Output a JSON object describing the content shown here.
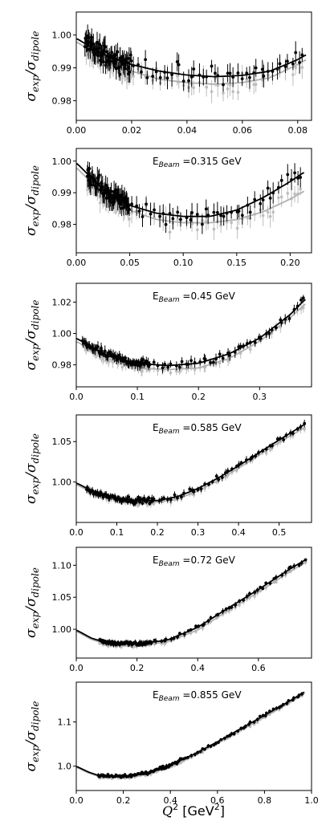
{
  "chart_data": [
    {
      "type": "scatter",
      "ylabel": "σexp/σdipole",
      "annotation": "",
      "xlim": [
        0.0,
        0.085
      ],
      "ylim": [
        0.974,
        1.007
      ],
      "xticks": [
        "0.00",
        "0.02",
        "0.04",
        "0.06",
        "0.08"
      ],
      "yticks": [
        "0.98",
        "0.99",
        "1.00"
      ],
      "xtick_values": [
        0.0,
        0.02,
        0.04,
        0.06,
        0.08
      ],
      "ytick_values": [
        0.98,
        0.99,
        1.0
      ],
      "x_range": [
        0.003,
        0.083
      ],
      "fit_black": [
        [
          0.0,
          0.999
        ],
        [
          0.01,
          0.994
        ],
        [
          0.02,
          0.991
        ],
        [
          0.03,
          0.989
        ],
        [
          0.04,
          0.9878
        ],
        [
          0.05,
          0.9873
        ],
        [
          0.06,
          0.9877
        ],
        [
          0.07,
          0.989
        ],
        [
          0.08,
          0.9925
        ],
        [
          0.083,
          0.994
        ]
      ],
      "fit_gray": [
        [
          0.0,
          0.998
        ],
        [
          0.01,
          0.9925
        ],
        [
          0.02,
          0.989
        ],
        [
          0.03,
          0.9865
        ],
        [
          0.04,
          0.9855
        ],
        [
          0.05,
          0.985
        ],
        [
          0.06,
          0.9855
        ],
        [
          0.07,
          0.987
        ],
        [
          0.08,
          0.991
        ],
        [
          0.083,
          0.9925
        ]
      ],
      "dense_region": [
        0.003,
        0.02
      ],
      "scatter_amplitude": 0.0045,
      "error": 0.003
    },
    {
      "type": "scatter",
      "ylabel": "σexp/σdipole",
      "annotation": "E",
      "annotation_sub": "Beam",
      "annotation_rest": " =0.315 GeV",
      "xlim": [
        0.0,
        0.22
      ],
      "ylim": [
        0.971,
        1.004
      ],
      "xticks": [
        "0.00",
        "0.05",
        "0.10",
        "0.15",
        "0.20"
      ],
      "yticks": [
        "0.98",
        "0.99",
        "1.00"
      ],
      "xtick_values": [
        0.0,
        0.05,
        0.1,
        0.15,
        0.2
      ],
      "ytick_values": [
        0.98,
        0.99,
        1.0
      ],
      "x_range": [
        0.01,
        0.213
      ],
      "fit_black": [
        [
          0.0,
          0.9995
        ],
        [
          0.025,
          0.991
        ],
        [
          0.05,
          0.986
        ],
        [
          0.075,
          0.9835
        ],
        [
          0.1,
          0.9825
        ],
        [
          0.125,
          0.9825
        ],
        [
          0.15,
          0.9845
        ],
        [
          0.175,
          0.9885
        ],
        [
          0.2,
          0.9935
        ],
        [
          0.213,
          0.9965
        ]
      ],
      "fit_gray": [
        [
          0.0,
          0.998
        ],
        [
          0.025,
          0.9895
        ],
        [
          0.05,
          0.9845
        ],
        [
          0.075,
          0.9815
        ],
        [
          0.1,
          0.9805
        ],
        [
          0.125,
          0.9805
        ],
        [
          0.15,
          0.9815
        ],
        [
          0.175,
          0.984
        ],
        [
          0.2,
          0.988
        ],
        [
          0.213,
          0.9905
        ]
      ],
      "dense_region": [
        0.01,
        0.05
      ],
      "scatter_amplitude": 0.004,
      "error": 0.003
    },
    {
      "type": "scatter",
      "ylabel": "σexp/σdipole",
      "annotation": "E",
      "annotation_sub": "Beam",
      "annotation_rest": " =0.45 GeV",
      "xlim": [
        0.0,
        0.385
      ],
      "ylim": [
        0.966,
        1.032
      ],
      "xticks": [
        "0.0",
        "0.1",
        "0.2",
        "0.3"
      ],
      "yticks": [
        "0.98",
        "1.00",
        "1.02"
      ],
      "xtick_values": [
        0.0,
        0.1,
        0.2,
        0.3
      ],
      "ytick_values": [
        0.98,
        1.0,
        1.02
      ],
      "x_range": [
        0.01,
        0.375
      ],
      "fit_black": [
        [
          0.0,
          0.997
        ],
        [
          0.05,
          0.986
        ],
        [
          0.1,
          0.981
        ],
        [
          0.15,
          0.9795
        ],
        [
          0.2,
          0.981
        ],
        [
          0.25,
          0.987
        ],
        [
          0.3,
          0.997
        ],
        [
          0.35,
          1.012
        ],
        [
          0.375,
          1.022
        ]
      ],
      "fit_gray": [
        [
          0.0,
          0.995
        ],
        [
          0.05,
          0.984
        ],
        [
          0.1,
          0.978
        ],
        [
          0.15,
          0.977
        ],
        [
          0.2,
          0.978
        ],
        [
          0.25,
          0.984
        ],
        [
          0.3,
          0.995
        ],
        [
          0.35,
          1.01
        ],
        [
          0.375,
          1.019
        ]
      ],
      "dense_region": [
        0.01,
        0.12
      ],
      "scatter_amplitude": 0.004,
      "error": 0.003
    },
    {
      "type": "scatter",
      "ylabel": "σexp/σdipole",
      "annotation": "E",
      "annotation_sub": "Beam",
      "annotation_rest": " =0.585 GeV",
      "xlim": [
        0.0,
        0.58
      ],
      "ylim": [
        0.95,
        1.083
      ],
      "xticks": [
        "0.0",
        "0.1",
        "0.2",
        "0.3",
        "0.4",
        "0.5"
      ],
      "yticks": [
        "1.00",
        "1.05"
      ],
      "xtick_values": [
        0.0,
        0.1,
        0.2,
        0.3,
        0.4,
        0.5
      ],
      "ytick_values": [
        1.0,
        1.05
      ],
      "x_range": [
        0.025,
        0.565
      ],
      "fit_black": [
        [
          0.0,
          0.999
        ],
        [
          0.05,
          0.986
        ],
        [
          0.1,
          0.98
        ],
        [
          0.15,
          0.977
        ],
        [
          0.2,
          0.977
        ],
        [
          0.25,
          0.982
        ],
        [
          0.3,
          0.992
        ],
        [
          0.35,
          1.005
        ],
        [
          0.4,
          1.02
        ],
        [
          0.45,
          1.036
        ],
        [
          0.5,
          1.052
        ],
        [
          0.565,
          1.072
        ]
      ],
      "fit_gray": [
        [
          0.0,
          0.997
        ],
        [
          0.05,
          0.984
        ],
        [
          0.1,
          0.978
        ],
        [
          0.15,
          0.975
        ],
        [
          0.2,
          0.975
        ],
        [
          0.25,
          0.979
        ],
        [
          0.3,
          0.989
        ],
        [
          0.35,
          1.002
        ],
        [
          0.4,
          1.017
        ],
        [
          0.45,
          1.033
        ],
        [
          0.5,
          1.049
        ],
        [
          0.565,
          1.068
        ]
      ],
      "dense_region": [
        0.025,
        0.19
      ],
      "scatter_amplitude": 0.005,
      "error": 0.004
    },
    {
      "type": "scatter",
      "ylabel": "σexp/σdipole",
      "annotation": "E",
      "annotation_sub": "Beam",
      "annotation_rest": " =0.72 GeV",
      "xlim": [
        0.0,
        0.775
      ],
      "ylim": [
        0.955,
        1.128
      ],
      "xticks": [
        "0.0",
        "0.2",
        "0.4",
        "0.6"
      ],
      "yticks": [
        "1.00",
        "1.05",
        "1.10"
      ],
      "xtick_values": [
        0.0,
        0.2,
        0.4,
        0.6
      ],
      "ytick_values": [
        1.0,
        1.05,
        1.1
      ],
      "x_range": [
        0.075,
        0.76
      ],
      "fit_black": [
        [
          0.0,
          0.999
        ],
        [
          0.05,
          0.986
        ],
        [
          0.1,
          0.979
        ],
        [
          0.2,
          0.977
        ],
        [
          0.3,
          0.983
        ],
        [
          0.4,
          1.003
        ],
        [
          0.5,
          1.033
        ],
        [
          0.6,
          1.062
        ],
        [
          0.7,
          1.093
        ],
        [
          0.76,
          1.11
        ]
      ],
      "fit_gray": [
        [
          0.0,
          0.997
        ],
        [
          0.05,
          0.984
        ],
        [
          0.1,
          0.977
        ],
        [
          0.2,
          0.975
        ],
        [
          0.3,
          0.98
        ],
        [
          0.4,
          0.999
        ],
        [
          0.5,
          1.029
        ],
        [
          0.6,
          1.058
        ],
        [
          0.7,
          1.089
        ],
        [
          0.76,
          1.106
        ]
      ],
      "dense_region": [
        0.075,
        0.25
      ],
      "scatter_amplitude": 0.004,
      "error": 0.004
    },
    {
      "type": "scatter",
      "ylabel": "σexp/σdipole",
      "annotation": "E",
      "annotation_sub": "Beam",
      "annotation_rest": " =0.855 GeV",
      "xlim": [
        0.0,
        1.0
      ],
      "ylim": [
        0.945,
        1.19
      ],
      "xticks": [
        "0.0",
        "0.2",
        "0.4",
        "0.6",
        "0.8",
        "1.0"
      ],
      "yticks": [
        "1.0",
        "1.1"
      ],
      "xtick_values": [
        0.0,
        0.2,
        0.4,
        0.6,
        0.8,
        1.0
      ],
      "ytick_values": [
        1.0,
        1.1
      ],
      "x_range": [
        0.09,
        0.97
      ],
      "fit_black": [
        [
          0.0,
          1.0
        ],
        [
          0.05,
          0.987
        ],
        [
          0.1,
          0.978
        ],
        [
          0.2,
          0.976
        ],
        [
          0.3,
          0.985
        ],
        [
          0.4,
          1.003
        ],
        [
          0.5,
          1.027
        ],
        [
          0.6,
          1.055
        ],
        [
          0.7,
          1.085
        ],
        [
          0.8,
          1.115
        ],
        [
          0.9,
          1.145
        ],
        [
          0.97,
          1.168
        ]
      ],
      "fit_gray": [
        [
          0.0,
          0.998
        ],
        [
          0.05,
          0.985
        ],
        [
          0.1,
          0.976
        ],
        [
          0.2,
          0.974
        ],
        [
          0.3,
          0.982
        ],
        [
          0.4,
          1.0
        ],
        [
          0.5,
          1.023
        ],
        [
          0.6,
          1.051
        ],
        [
          0.7,
          1.081
        ],
        [
          0.8,
          1.111
        ],
        [
          0.9,
          1.141
        ],
        [
          0.97,
          1.164
        ]
      ],
      "dense_region": [
        0.09,
        0.45
      ],
      "scatter_amplitude": 0.005,
      "error": 0.004
    }
  ],
  "xlabel": "Q",
  "xlabel_sup": "2",
  "xlabel_unit": " [GeV",
  "xlabel_unit_sup": "2",
  "xlabel_close": "]",
  "colors": {
    "data": "#000000",
    "fit": "#000000",
    "fit_alt": "#b0b0b0",
    "data_alt": "#bdbdbd"
  }
}
